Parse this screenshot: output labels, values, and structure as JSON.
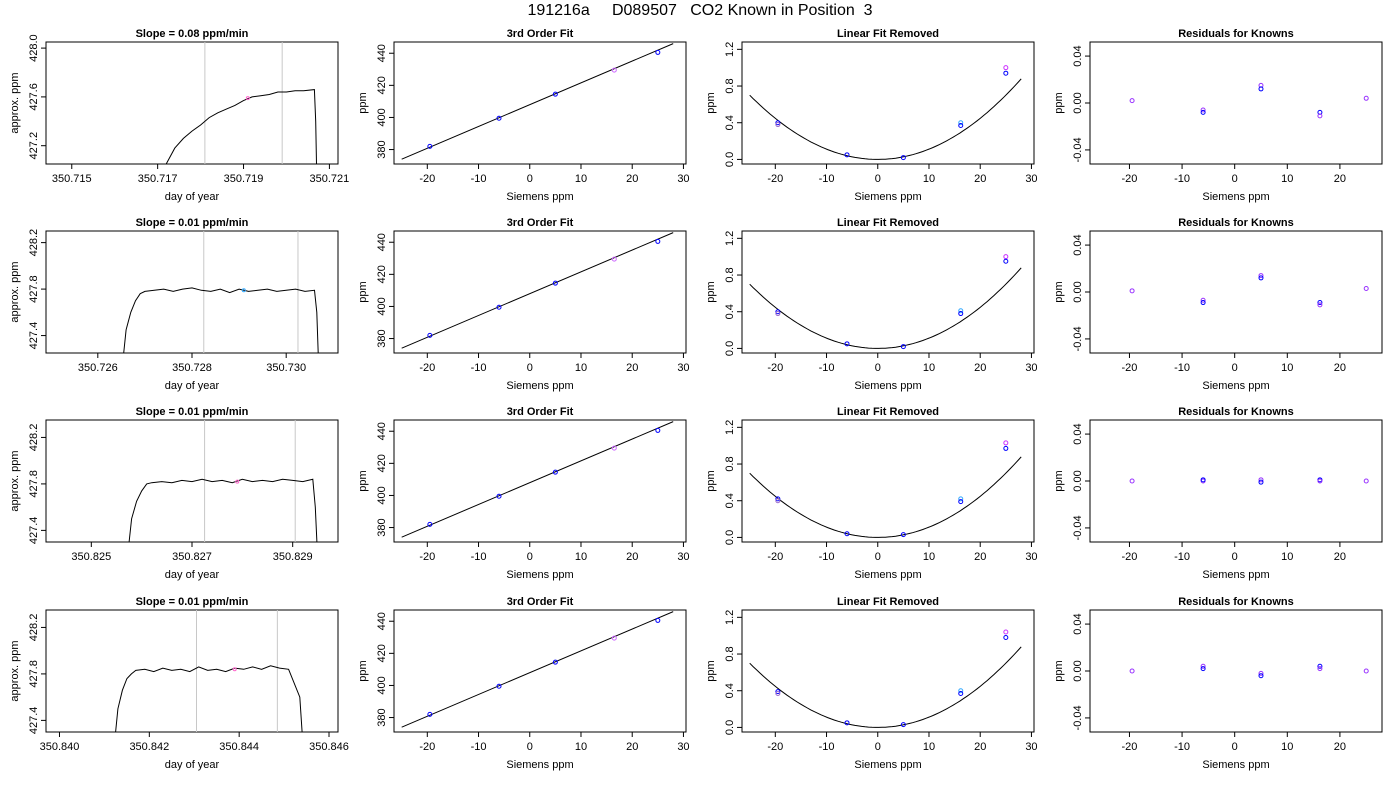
{
  "figure": {
    "title": "191216a     D089507   CO2 Known in Position  3"
  },
  "chart_data": [
    {
      "type": "line",
      "row": 1,
      "title": "Slope =  0.08  ppm/min",
      "xlabel": "day of year",
      "ylabel": "approx. ppm",
      "xlim": [
        350.7144,
        350.7212
      ],
      "ylim": [
        427.05,
        428.05
      ],
      "xticks": [
        "350.715",
        "350.717",
        "350.719",
        "350.721"
      ],
      "yticks": [
        "427.2",
        "427.6",
        "428.0"
      ],
      "vlines": [
        350.7181,
        350.7199
      ],
      "x": [
        350.7172,
        350.7174,
        350.7176,
        350.7178,
        350.718,
        350.7182,
        350.7184,
        350.7186,
        350.7188,
        350.719,
        350.7192,
        350.7194,
        350.7196,
        350.7198,
        350.72,
        350.7202,
        350.7204,
        350.72065,
        350.72068,
        350.7207
      ],
      "y": [
        427.05,
        427.18,
        427.26,
        427.32,
        427.37,
        427.43,
        427.47,
        427.5,
        427.53,
        427.57,
        427.6,
        427.61,
        427.62,
        427.64,
        427.64,
        427.65,
        427.65,
        427.66,
        427.4,
        427.05
      ],
      "marker_x": 350.7191,
      "marker_y": 427.59,
      "marker_color": "#ff66cc"
    },
    {
      "type": "scatter",
      "row": 1,
      "title": "3rd Order Fit",
      "xlabel": "Siemens ppm",
      "ylabel": "ppm",
      "xlim": [
        -26.5,
        30.5
      ],
      "ylim": [
        371,
        447
      ],
      "xticks": [
        -20,
        -10,
        0,
        10,
        20,
        30
      ],
      "yticks": [
        380,
        400,
        420,
        440
      ],
      "fit_line": [
        [
          -25,
          374
        ],
        [
          28,
          446
        ]
      ],
      "points": [
        {
          "x": -19.5,
          "y": 382,
          "color": "#0000ff"
        },
        {
          "x": -6,
          "y": 399.5,
          "color": "#0000ff"
        },
        {
          "x": 5,
          "y": 414.5,
          "color": "#0000ff"
        },
        {
          "x": 16.5,
          "y": 429.5,
          "color": "#cc66ff"
        },
        {
          "x": 25,
          "y": 440.5,
          "color": "#0000ff"
        }
      ]
    },
    {
      "type": "scatter",
      "row": 1,
      "title": "Linear Fit Removed",
      "xlabel": "Siemens ppm",
      "ylabel": "ppm",
      "xlim": [
        -26.5,
        30.5
      ],
      "ylim": [
        -0.05,
        1.28
      ],
      "xticks": [
        -20,
        -10,
        0,
        10,
        20,
        30
      ],
      "yticks": [
        "0.0",
        "0.4",
        "0.8",
        "1.2"
      ],
      "curve_coef": 0.00112,
      "curve_range": [
        -25,
        28
      ],
      "points": [
        {
          "x": -19.5,
          "y": 0.4,
          "color": "#0000ff"
        },
        {
          "x": -19.5,
          "y": 0.38,
          "color": "#9966cc"
        },
        {
          "x": -6,
          "y": 0.05,
          "color": "#0000ff"
        },
        {
          "x": 5,
          "y": 0.02,
          "color": "#0000ff"
        },
        {
          "x": 16.2,
          "y": 0.4,
          "color": "#33aaff"
        },
        {
          "x": 16.2,
          "y": 0.37,
          "color": "#0000ff"
        },
        {
          "x": 25,
          "y": 1.0,
          "color": "#cc33ff"
        },
        {
          "x": 25,
          "y": 0.94,
          "color": "#0000ff"
        }
      ]
    },
    {
      "type": "scatter",
      "row": 1,
      "title": "Residuals for Knowns",
      "xlabel": "Siemens ppm",
      "ylabel": "ppm",
      "xlim": [
        -27.5,
        28
      ],
      "ylim": [
        -0.052,
        0.052
      ],
      "xticks": [
        -20,
        -10,
        0,
        10,
        20
      ],
      "yticks": [
        "-0.04",
        "0.00",
        "0.04"
      ],
      "points": [
        {
          "x": -19.5,
          "y": 0.002,
          "color": "#9933ff"
        },
        {
          "x": -6,
          "y": -0.006,
          "color": "#9933ff"
        },
        {
          "x": -6,
          "y": -0.008,
          "color": "#0000ff"
        },
        {
          "x": 5,
          "y": 0.015,
          "color": "#9933ff"
        },
        {
          "x": 5,
          "y": 0.012,
          "color": "#0000ff"
        },
        {
          "x": 16.2,
          "y": -0.008,
          "color": "#0000ff"
        },
        {
          "x": 16.2,
          "y": -0.011,
          "color": "#9933ff"
        },
        {
          "x": 25,
          "y": 0.004,
          "color": "#9933ff"
        }
      ]
    },
    {
      "type": "line",
      "row": 2,
      "title": "Slope =  0.01  ppm/min",
      "xlabel": "day of year",
      "ylabel": "approx. ppm",
      "xlim": [
        350.7249,
        350.7311
      ],
      "ylim": [
        427.25,
        428.3
      ],
      "xticks": [
        "350.726",
        "350.728",
        "350.730"
      ],
      "yticks": [
        "427.4",
        "427.8",
        "428.2"
      ],
      "vlines": [
        350.72825,
        350.73025
      ],
      "x": [
        350.72655,
        350.7266,
        350.7267,
        350.7268,
        350.7269,
        350.727,
        350.7272,
        350.7274,
        350.7276,
        350.7278,
        350.728,
        350.7282,
        350.7284,
        350.7286,
        350.7288,
        350.729,
        350.7292,
        350.7294,
        350.7296,
        350.7298,
        350.73,
        350.7302,
        350.7304,
        350.7306,
        350.73065,
        350.73068
      ],
      "y": [
        427.25,
        427.45,
        427.6,
        427.7,
        427.76,
        427.78,
        427.79,
        427.8,
        427.78,
        427.8,
        427.81,
        427.79,
        427.78,
        427.8,
        427.77,
        427.8,
        427.78,
        427.79,
        427.8,
        427.78,
        427.79,
        427.8,
        427.78,
        427.79,
        427.6,
        427.25
      ],
      "marker_x": 350.7291,
      "marker_y": 427.79,
      "marker_color": "#33aaff"
    },
    {
      "type": "scatter",
      "row": 2,
      "title": "3rd Order Fit",
      "xlabel": "Siemens ppm",
      "ylabel": "ppm",
      "xlim": [
        -26.5,
        30.5
      ],
      "ylim": [
        371,
        447
      ],
      "xticks": [
        -20,
        -10,
        0,
        10,
        20,
        30
      ],
      "yticks": [
        380,
        400,
        420,
        440
      ],
      "fit_line": [
        [
          -25,
          374
        ],
        [
          28,
          446
        ]
      ],
      "points": [
        {
          "x": -19.5,
          "y": 382,
          "color": "#0000ff"
        },
        {
          "x": -6,
          "y": 399.5,
          "color": "#0000ff"
        },
        {
          "x": 5,
          "y": 414.5,
          "color": "#0000ff"
        },
        {
          "x": 16.5,
          "y": 429.5,
          "color": "#cc66ff"
        },
        {
          "x": 25,
          "y": 440.5,
          "color": "#0000ff"
        }
      ]
    },
    {
      "type": "scatter",
      "row": 2,
      "title": "Linear Fit Removed",
      "xlabel": "Siemens ppm",
      "ylabel": "ppm",
      "xlim": [
        -26.5,
        30.5
      ],
      "ylim": [
        -0.05,
        1.28
      ],
      "xticks": [
        -20,
        -10,
        0,
        10,
        20,
        30
      ],
      "yticks": [
        "0.0",
        "0.4",
        "0.8",
        "1.2"
      ],
      "curve_coef": 0.00112,
      "curve_range": [
        -25,
        28
      ],
      "points": [
        {
          "x": -19.5,
          "y": 0.4,
          "color": "#0000ff"
        },
        {
          "x": -19.5,
          "y": 0.38,
          "color": "#9966cc"
        },
        {
          "x": -6,
          "y": 0.05,
          "color": "#0000ff"
        },
        {
          "x": 5,
          "y": 0.02,
          "color": "#0000ff"
        },
        {
          "x": 16.2,
          "y": 0.41,
          "color": "#33aaff"
        },
        {
          "x": 16.2,
          "y": 0.38,
          "color": "#0000ff"
        },
        {
          "x": 25,
          "y": 1.0,
          "color": "#cc33ff"
        },
        {
          "x": 25,
          "y": 0.95,
          "color": "#0000ff"
        }
      ]
    },
    {
      "type": "scatter",
      "row": 2,
      "title": "Residuals for Knowns",
      "xlabel": "Siemens ppm",
      "ylabel": "ppm",
      "xlim": [
        -27.5,
        28
      ],
      "ylim": [
        -0.052,
        0.052
      ],
      "xticks": [
        -20,
        -10,
        0,
        10,
        20
      ],
      "yticks": [
        "-0.04",
        "0.00",
        "0.04"
      ],
      "points": [
        {
          "x": -19.5,
          "y": 0.001,
          "color": "#9933ff"
        },
        {
          "x": -6,
          "y": -0.007,
          "color": "#9933ff"
        },
        {
          "x": -6,
          "y": -0.009,
          "color": "#0000ff"
        },
        {
          "x": 5,
          "y": 0.014,
          "color": "#9933ff"
        },
        {
          "x": 5,
          "y": 0.012,
          "color": "#0000ff"
        },
        {
          "x": 16.2,
          "y": -0.009,
          "color": "#0000ff"
        },
        {
          "x": 16.2,
          "y": -0.011,
          "color": "#9933ff"
        },
        {
          "x": 25,
          "y": 0.003,
          "color": "#9933ff"
        }
      ]
    },
    {
      "type": "line",
      "row": 3,
      "title": "Slope =  0.01  ppm/min",
      "xlabel": "day of year",
      "ylabel": "approx. ppm",
      "xlim": [
        350.8241,
        350.8299
      ],
      "ylim": [
        427.3,
        428.35
      ],
      "xticks": [
        "350.825",
        "350.827",
        "350.829"
      ],
      "yticks": [
        "427.4",
        "427.8",
        "428.2"
      ],
      "vlines": [
        350.82725,
        350.82905
      ],
      "x": [
        350.82575,
        350.8258,
        350.8259,
        350.826,
        350.8261,
        350.8262,
        350.8264,
        350.8266,
        350.8268,
        350.827,
        350.8272,
        350.8274,
        350.8276,
        350.8278,
        350.828,
        350.8282,
        350.8284,
        350.8286,
        350.8288,
        350.829,
        350.8292,
        350.8294,
        350.82945,
        350.82948
      ],
      "y": [
        427.3,
        427.5,
        427.65,
        427.74,
        427.8,
        427.81,
        427.82,
        427.81,
        427.83,
        427.82,
        427.84,
        427.82,
        427.83,
        427.81,
        427.84,
        427.82,
        427.83,
        427.82,
        427.84,
        427.83,
        427.82,
        427.84,
        427.6,
        427.3
      ],
      "marker_x": 350.8279,
      "marker_y": 427.82,
      "marker_color": "#ff66cc"
    },
    {
      "type": "scatter",
      "row": 3,
      "title": "3rd Order Fit",
      "xlabel": "Siemens ppm",
      "ylabel": "ppm",
      "xlim": [
        -26.5,
        30.5
      ],
      "ylim": [
        371,
        447
      ],
      "xticks": [
        -20,
        -10,
        0,
        10,
        20,
        30
      ],
      "yticks": [
        380,
        400,
        420,
        440
      ],
      "fit_line": [
        [
          -25,
          374
        ],
        [
          28,
          446
        ]
      ],
      "points": [
        {
          "x": -19.5,
          "y": 382,
          "color": "#0000ff"
        },
        {
          "x": -6,
          "y": 399.5,
          "color": "#0000ff"
        },
        {
          "x": 5,
          "y": 414.5,
          "color": "#0000ff"
        },
        {
          "x": 16.5,
          "y": 429.5,
          "color": "#cc66ff"
        },
        {
          "x": 25,
          "y": 440.5,
          "color": "#0000ff"
        }
      ]
    },
    {
      "type": "scatter",
      "row": 3,
      "title": "Linear Fit Removed",
      "xlabel": "Siemens ppm",
      "ylabel": "ppm",
      "xlim": [
        -26.5,
        30.5
      ],
      "ylim": [
        -0.05,
        1.28
      ],
      "xticks": [
        -20,
        -10,
        0,
        10,
        20,
        30
      ],
      "yticks": [
        "0.0",
        "0.4",
        "0.8",
        "1.2"
      ],
      "curve_coef": 0.00112,
      "curve_range": [
        -25,
        28
      ],
      "points": [
        {
          "x": -19.5,
          "y": 0.42,
          "color": "#0000ff"
        },
        {
          "x": -19.5,
          "y": 0.4,
          "color": "#9966cc"
        },
        {
          "x": -6,
          "y": 0.04,
          "color": "#0000ff"
        },
        {
          "x": 5,
          "y": 0.03,
          "color": "#0000ff"
        },
        {
          "x": 16.2,
          "y": 0.42,
          "color": "#33aaff"
        },
        {
          "x": 16.2,
          "y": 0.39,
          "color": "#0000ff"
        },
        {
          "x": 25,
          "y": 1.03,
          "color": "#cc33ff"
        },
        {
          "x": 25,
          "y": 0.97,
          "color": "#0000ff"
        }
      ]
    },
    {
      "type": "scatter",
      "row": 3,
      "title": "Residuals for Knowns",
      "xlabel": "Siemens ppm",
      "ylabel": "ppm",
      "xlim": [
        -27.5,
        28
      ],
      "ylim": [
        -0.052,
        0.052
      ],
      "xticks": [
        -20,
        -10,
        0,
        10,
        20
      ],
      "yticks": [
        "-0.04",
        "0.00",
        "0.04"
      ],
      "points": [
        {
          "x": -19.5,
          "y": 0.0,
          "color": "#9933ff"
        },
        {
          "x": -6,
          "y": 0.0,
          "color": "#9933ff"
        },
        {
          "x": -6,
          "y": 0.001,
          "color": "#0000ff"
        },
        {
          "x": 5,
          "y": 0.001,
          "color": "#9933ff"
        },
        {
          "x": 5,
          "y": -0.001,
          "color": "#0000ff"
        },
        {
          "x": 16.2,
          "y": 0.001,
          "color": "#0000ff"
        },
        {
          "x": 16.2,
          "y": 0.0,
          "color": "#9933ff"
        },
        {
          "x": 25,
          "y": 0.0,
          "color": "#9933ff"
        }
      ]
    },
    {
      "type": "line",
      "row": 4,
      "title": "Slope =  0.01  ppm/min",
      "xlabel": "day of year",
      "ylabel": "approx. ppm",
      "xlim": [
        350.8397,
        350.8462
      ],
      "ylim": [
        427.3,
        428.35
      ],
      "xticks": [
        "350.840",
        "350.842",
        "350.844",
        "350.846"
      ],
      "yticks": [
        "427.4",
        "427.8",
        "428.2"
      ],
      "vlines": [
        350.84305,
        350.84485
      ],
      "x": [
        350.84125,
        350.8413,
        350.8414,
        350.8415,
        350.8416,
        350.8417,
        350.8419,
        350.8421,
        350.8423,
        350.8425,
        350.8427,
        350.8429,
        350.8431,
        350.8433,
        350.8435,
        350.8437,
        350.8439,
        350.8441,
        350.8443,
        350.8445,
        350.8447,
        350.8449,
        350.8451,
        350.84535,
        350.8454
      ],
      "y": [
        427.3,
        427.5,
        427.66,
        427.76,
        427.8,
        427.83,
        427.84,
        427.82,
        427.85,
        427.83,
        427.84,
        427.82,
        427.86,
        427.83,
        427.84,
        427.82,
        427.85,
        427.84,
        427.86,
        427.84,
        427.87,
        427.85,
        427.84,
        427.6,
        427.3
      ],
      "marker_x": 350.8439,
      "marker_y": 427.84,
      "marker_color": "#ff66cc"
    },
    {
      "type": "scatter",
      "row": 4,
      "title": "3rd Order Fit",
      "xlabel": "Siemens ppm",
      "ylabel": "ppm",
      "xlim": [
        -26.5,
        30.5
      ],
      "ylim": [
        371,
        447
      ],
      "xticks": [
        -20,
        -10,
        0,
        10,
        20,
        30
      ],
      "yticks": [
        380,
        400,
        420,
        440
      ],
      "fit_line": [
        [
          -25,
          374
        ],
        [
          28,
          446
        ]
      ],
      "points": [
        {
          "x": -19.5,
          "y": 382,
          "color": "#0000ff"
        },
        {
          "x": -6,
          "y": 399.5,
          "color": "#0000ff"
        },
        {
          "x": 5,
          "y": 414.5,
          "color": "#0000ff"
        },
        {
          "x": 16.5,
          "y": 429.5,
          "color": "#cc66ff"
        },
        {
          "x": 25,
          "y": 440.5,
          "color": "#0000ff"
        }
      ]
    },
    {
      "type": "scatter",
      "row": 4,
      "title": "Linear Fit Removed",
      "xlabel": "Siemens ppm",
      "ylabel": "ppm",
      "xlim": [
        -26.5,
        30.5
      ],
      "ylim": [
        -0.05,
        1.28
      ],
      "xticks": [
        -20,
        -10,
        0,
        10,
        20,
        30
      ],
      "yticks": [
        "0.0",
        "0.4",
        "0.8",
        "1.2"
      ],
      "curve_coef": 0.00112,
      "curve_range": [
        -25,
        28
      ],
      "points": [
        {
          "x": -19.5,
          "y": 0.39,
          "color": "#0000ff"
        },
        {
          "x": -19.5,
          "y": 0.37,
          "color": "#9966cc"
        },
        {
          "x": -6,
          "y": 0.05,
          "color": "#0000ff"
        },
        {
          "x": 5,
          "y": 0.03,
          "color": "#0000ff"
        },
        {
          "x": 16.2,
          "y": 0.4,
          "color": "#33aaff"
        },
        {
          "x": 16.2,
          "y": 0.37,
          "color": "#0000ff"
        },
        {
          "x": 25,
          "y": 1.04,
          "color": "#cc33ff"
        },
        {
          "x": 25,
          "y": 0.98,
          "color": "#0000ff"
        }
      ]
    },
    {
      "type": "scatter",
      "row": 4,
      "title": "Residuals for Knowns",
      "xlabel": "Siemens ppm",
      "ylabel": "ppm",
      "xlim": [
        -27.5,
        28
      ],
      "ylim": [
        -0.052,
        0.052
      ],
      "xticks": [
        -20,
        -10,
        0,
        10,
        20
      ],
      "yticks": [
        "-0.04",
        "0.00",
        "0.04"
      ],
      "points": [
        {
          "x": -19.5,
          "y": 0.0,
          "color": "#9933ff"
        },
        {
          "x": -6,
          "y": 0.004,
          "color": "#9933ff"
        },
        {
          "x": -6,
          "y": 0.002,
          "color": "#0000ff"
        },
        {
          "x": 5,
          "y": -0.002,
          "color": "#9933ff"
        },
        {
          "x": 5,
          "y": -0.004,
          "color": "#0000ff"
        },
        {
          "x": 16.2,
          "y": 0.004,
          "color": "#0000ff"
        },
        {
          "x": 16.2,
          "y": 0.002,
          "color": "#9933ff"
        },
        {
          "x": 25,
          "y": 0.0,
          "color": "#9933ff"
        }
      ]
    }
  ]
}
